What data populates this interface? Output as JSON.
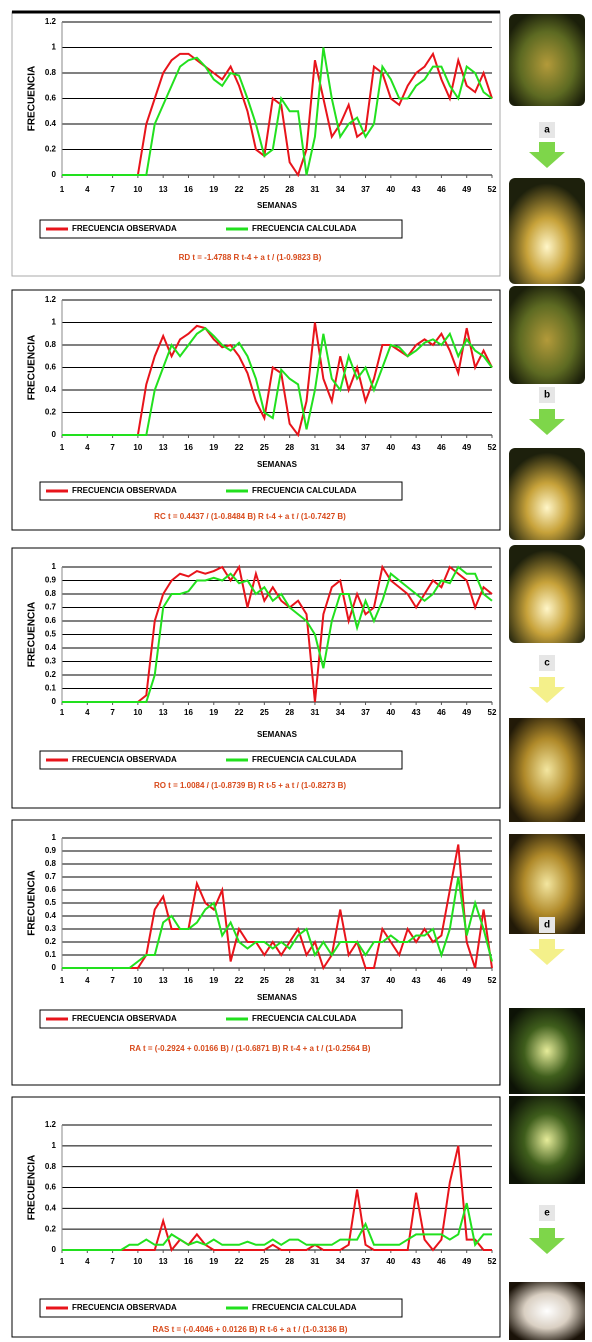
{
  "chart_data": [
    {
      "type": "line",
      "xlabel": "SEMANAS",
      "ylabel": "FRECUENCIA",
      "annotation": "RD t = -1.4788 R t-4 + a t / (1-0.9823 B)",
      "x": [
        1,
        2,
        3,
        4,
        5,
        6,
        7,
        8,
        9,
        10,
        11,
        12,
        13,
        14,
        15,
        16,
        17,
        18,
        19,
        20,
        21,
        22,
        23,
        24,
        25,
        26,
        27,
        28,
        29,
        30,
        31,
        32,
        33,
        34,
        35,
        36,
        37,
        38,
        39,
        40,
        41,
        42,
        43,
        44,
        45,
        46,
        47,
        48,
        49,
        50,
        51,
        52
      ],
      "xlim": [
        1,
        52
      ],
      "xticks": [
        1,
        4,
        7,
        10,
        13,
        16,
        19,
        22,
        25,
        28,
        31,
        34,
        37,
        40,
        43,
        46,
        49,
        52
      ],
      "ylim": [
        0,
        1.2
      ],
      "yticks": [
        0,
        0.2,
        0.4,
        0.6,
        0.8,
        1,
        1.2
      ],
      "grid": true,
      "series": [
        {
          "name": "FRECUENCIA OBSERVADA",
          "color": "#e8141b",
          "values": [
            0,
            0,
            0,
            0,
            0,
            0,
            0,
            0,
            0,
            0,
            0.4,
            0.6,
            0.8,
            0.9,
            0.95,
            0.95,
            0.9,
            0.85,
            0.8,
            0.75,
            0.85,
            0.7,
            0.5,
            0.2,
            0.15,
            0.6,
            0.55,
            0.1,
            0,
            0.2,
            0.9,
            0.6,
            0.3,
            0.4,
            0.55,
            0.3,
            0.35,
            0.85,
            0.8,
            0.6,
            0.55,
            0.7,
            0.8,
            0.85,
            0.95,
            0.75,
            0.6,
            0.9,
            0.7,
            0.65,
            0.8,
            0.6
          ]
        },
        {
          "name": "FRECUENCIA CALCULADA",
          "color": "#22e01e",
          "values": [
            0,
            0,
            0,
            0,
            0,
            0,
            0,
            0,
            0,
            0,
            0,
            0.4,
            0.55,
            0.7,
            0.85,
            0.9,
            0.92,
            0.85,
            0.75,
            0.7,
            0.8,
            0.78,
            0.6,
            0.4,
            0.15,
            0.2,
            0.6,
            0.5,
            0.5,
            0,
            0.3,
            1,
            0.6,
            0.3,
            0.4,
            0.45,
            0.3,
            0.4,
            0.85,
            0.75,
            0.6,
            0.6,
            0.7,
            0.75,
            0.85,
            0.85,
            0.7,
            0.6,
            0.85,
            0.8,
            0.65,
            0.6
          ]
        }
      ]
    },
    {
      "type": "line",
      "xlabel": "SEMANAS",
      "ylabel": "FRECUENCIA",
      "annotation": "RC t = 0.4437 / (1-0.8484 B) R t-4 + a t / (1-0.7427 B)",
      "x": [
        1,
        2,
        3,
        4,
        5,
        6,
        7,
        8,
        9,
        10,
        11,
        12,
        13,
        14,
        15,
        16,
        17,
        18,
        19,
        20,
        21,
        22,
        23,
        24,
        25,
        26,
        27,
        28,
        29,
        30,
        31,
        32,
        33,
        34,
        35,
        36,
        37,
        38,
        39,
        40,
        41,
        42,
        43,
        44,
        45,
        46,
        47,
        48,
        49,
        50,
        51,
        52
      ],
      "xlim": [
        1,
        52
      ],
      "xticks": [
        1,
        4,
        7,
        10,
        13,
        16,
        19,
        22,
        25,
        28,
        31,
        34,
        37,
        40,
        43,
        46,
        49,
        52
      ],
      "ylim": [
        0,
        1.2
      ],
      "yticks": [
        0,
        0.2,
        0.4,
        0.6,
        0.8,
        1,
        1.2
      ],
      "grid": true,
      "series": [
        {
          "name": "FRECUENCIA OBSERVADA",
          "color": "#e8141b",
          "values": [
            0,
            0,
            0,
            0,
            0,
            0,
            0,
            0,
            0,
            0,
            0.45,
            0.7,
            0.88,
            0.7,
            0.85,
            0.9,
            0.97,
            0.95,
            0.85,
            0.78,
            0.8,
            0.7,
            0.55,
            0.3,
            0.15,
            0.6,
            0.55,
            0.1,
            0,
            0.3,
            1,
            0.5,
            0.3,
            0.7,
            0.4,
            0.6,
            0.3,
            0.5,
            0.8,
            0.8,
            0.75,
            0.7,
            0.8,
            0.85,
            0.8,
            0.9,
            0.75,
            0.55,
            0.95,
            0.6,
            0.75,
            0.6
          ]
        },
        {
          "name": "FRECUENCIA CALCULADA",
          "color": "#22e01e",
          "values": [
            0,
            0,
            0,
            0,
            0,
            0,
            0,
            0,
            0,
            0,
            0,
            0.4,
            0.6,
            0.8,
            0.7,
            0.8,
            0.9,
            0.95,
            0.88,
            0.8,
            0.75,
            0.82,
            0.7,
            0.5,
            0.2,
            0.15,
            0.58,
            0.5,
            0.45,
            0.05,
            0.4,
            0.9,
            0.5,
            0.4,
            0.7,
            0.5,
            0.6,
            0.4,
            0.6,
            0.8,
            0.78,
            0.7,
            0.75,
            0.82,
            0.85,
            0.8,
            0.9,
            0.7,
            0.85,
            0.75,
            0.7,
            0.6
          ]
        }
      ]
    },
    {
      "type": "line",
      "xlabel": "SEMANAS",
      "ylabel": "FRECUENCIA",
      "annotation": "RO t = 1.0084 / (1-0.8739 B) R t-5 + a t / (1-0.8273 B)",
      "x": [
        1,
        2,
        3,
        4,
        5,
        6,
        7,
        8,
        9,
        10,
        11,
        12,
        13,
        14,
        15,
        16,
        17,
        18,
        19,
        20,
        21,
        22,
        23,
        24,
        25,
        26,
        27,
        28,
        29,
        30,
        31,
        32,
        33,
        34,
        35,
        36,
        37,
        38,
        39,
        40,
        41,
        42,
        43,
        44,
        45,
        46,
        47,
        48,
        49,
        50,
        51,
        52
      ],
      "xlim": [
        1,
        52
      ],
      "xticks": [
        1,
        4,
        7,
        10,
        13,
        16,
        19,
        22,
        25,
        28,
        31,
        34,
        37,
        40,
        43,
        46,
        49,
        52
      ],
      "ylim": [
        0,
        1
      ],
      "yticks": [
        0,
        0.1,
        0.2,
        0.3,
        0.4,
        0.5,
        0.6,
        0.7,
        0.8,
        0.9,
        1
      ],
      "grid": true,
      "series": [
        {
          "name": "FRECUENCIA OBSERVADA",
          "color": "#e8141b",
          "values": [
            0,
            0,
            0,
            0,
            0,
            0,
            0,
            0,
            0,
            0,
            0.05,
            0.6,
            0.8,
            0.9,
            0.95,
            0.93,
            0.97,
            0.95,
            0.97,
            1,
            0.9,
            1,
            0.7,
            0.95,
            0.75,
            0.85,
            0.75,
            0.7,
            0.75,
            0.65,
            0,
            0.65,
            0.85,
            0.9,
            0.6,
            0.8,
            0.65,
            0.7,
            1,
            0.9,
            0.85,
            0.8,
            0.7,
            0.8,
            0.9,
            0.85,
            1,
            0.95,
            0.9,
            0.7,
            0.85,
            0.8
          ]
        },
        {
          "name": "FRECUENCIA CALCULADA",
          "color": "#22e01e",
          "values": [
            0,
            0,
            0,
            0,
            0,
            0,
            0,
            0,
            0,
            0,
            0,
            0.2,
            0.7,
            0.8,
            0.8,
            0.82,
            0.9,
            0.9,
            0.92,
            0.9,
            0.95,
            0.88,
            0.9,
            0.8,
            0.85,
            0.75,
            0.8,
            0.7,
            0.65,
            0.6,
            0.5,
            0.25,
            0.6,
            0.8,
            0.8,
            0.55,
            0.75,
            0.6,
            0.75,
            0.95,
            0.9,
            0.85,
            0.8,
            0.75,
            0.8,
            0.9,
            0.88,
            1,
            0.95,
            0.95,
            0.8,
            0.75
          ]
        }
      ]
    },
    {
      "type": "line",
      "xlabel": "SEMANAS",
      "ylabel": "FRECUENCIA",
      "annotation": "RA t = (-0.2924 + 0.0166 B) / (1-0.6871 B) R t-4 + a t / (1-0.2564 B)",
      "x": [
        1,
        2,
        3,
        4,
        5,
        6,
        7,
        8,
        9,
        10,
        11,
        12,
        13,
        14,
        15,
        16,
        17,
        18,
        19,
        20,
        21,
        22,
        23,
        24,
        25,
        26,
        27,
        28,
        29,
        30,
        31,
        32,
        33,
        34,
        35,
        36,
        37,
        38,
        39,
        40,
        41,
        42,
        43,
        44,
        45,
        46,
        47,
        48,
        49,
        50,
        51,
        52
      ],
      "xlim": [
        1,
        52
      ],
      "xticks": [
        1,
        4,
        7,
        10,
        13,
        16,
        19,
        22,
        25,
        28,
        31,
        34,
        37,
        40,
        43,
        46,
        49,
        52
      ],
      "ylim": [
        0,
        1
      ],
      "yticks": [
        0,
        0.1,
        0.2,
        0.3,
        0.4,
        0.5,
        0.6,
        0.7,
        0.8,
        0.9,
        1
      ],
      "grid": true,
      "series": [
        {
          "name": "FRECUENCIA OBSERVADA",
          "color": "#e8141b",
          "values": [
            0,
            0,
            0,
            0,
            0,
            0,
            0,
            0,
            0,
            0,
            0.1,
            0.45,
            0.55,
            0.3,
            0.3,
            0.3,
            0.65,
            0.5,
            0.45,
            0.6,
            0.05,
            0.3,
            0.2,
            0.2,
            0.1,
            0.2,
            0.1,
            0.2,
            0.3,
            0.1,
            0.2,
            0,
            0.1,
            0.45,
            0.1,
            0.2,
            0,
            0,
            0.3,
            0.2,
            0.1,
            0.3,
            0.2,
            0.3,
            0.2,
            0.25,
            0.6,
            0.95,
            0.2,
            0,
            0.45,
            0
          ]
        },
        {
          "name": "FRECUENCIA CALCULADA",
          "color": "#22e01e",
          "values": [
            0,
            0,
            0,
            0,
            0,
            0,
            0,
            0,
            0,
            0.05,
            0.1,
            0.1,
            0.35,
            0.4,
            0.3,
            0.3,
            0.35,
            0.45,
            0.5,
            0.25,
            0.35,
            0.2,
            0.15,
            0.2,
            0.2,
            0.15,
            0.2,
            0.15,
            0.25,
            0.3,
            0.1,
            0.2,
            0.1,
            0.2,
            0.2,
            0.2,
            0.1,
            0.2,
            0.2,
            0.25,
            0.2,
            0.2,
            0.25,
            0.25,
            0.3,
            0.1,
            0.3,
            0.7,
            0.25,
            0.5,
            0.3,
            0.05
          ]
        }
      ]
    },
    {
      "type": "line",
      "ylabel": "FRECUENCIA",
      "annotation": "RAS t = (-0.4046 + 0.0126 B) R t-6 + a t / (1-0.3136 B)",
      "x": [
        1,
        2,
        3,
        4,
        5,
        6,
        7,
        8,
        9,
        10,
        11,
        12,
        13,
        14,
        15,
        16,
        17,
        18,
        19,
        20,
        21,
        22,
        23,
        24,
        25,
        26,
        27,
        28,
        29,
        30,
        31,
        32,
        33,
        34,
        35,
        36,
        37,
        38,
        39,
        40,
        41,
        42,
        43,
        44,
        45,
        46,
        47,
        48,
        49,
        50,
        51,
        52
      ],
      "xlim": [
        1,
        52
      ],
      "xticks": [
        1,
        4,
        7,
        10,
        13,
        16,
        19,
        22,
        25,
        28,
        31,
        34,
        37,
        40,
        43,
        46,
        49,
        52
      ],
      "ylim": [
        0,
        1.2
      ],
      "yticks": [
        0,
        0.2,
        0.4,
        0.6,
        0.8,
        1,
        1.2
      ],
      "grid": true,
      "series": [
        {
          "name": "FRECUENCIA OBSERVADA",
          "color": "#e8141b",
          "values": [
            0,
            0,
            0,
            0,
            0,
            0,
            0,
            0,
            0,
            0,
            0,
            0,
            0.28,
            0,
            0.1,
            0.05,
            0.15,
            0.05,
            0,
            0,
            0,
            0,
            0,
            0,
            0,
            0.05,
            0,
            0,
            0,
            0,
            0.05,
            0,
            0,
            0,
            0.05,
            0.58,
            0.05,
            0,
            0,
            0,
            0,
            0,
            0.55,
            0.1,
            0,
            0.1,
            0.65,
            1,
            0.1,
            0.1,
            0,
            0
          ]
        },
        {
          "name": "FRECUENCIA CALCULADA",
          "color": "#22e01e",
          "values": [
            0,
            0,
            0,
            0,
            0,
            0,
            0,
            0,
            0.05,
            0.05,
            0.1,
            0.05,
            0.05,
            0.15,
            0.1,
            0.05,
            0.08,
            0.05,
            0.1,
            0.05,
            0.05,
            0.05,
            0.08,
            0.05,
            0.05,
            0.1,
            0.05,
            0.1,
            0.1,
            0.05,
            0.05,
            0.05,
            0.05,
            0.1,
            0.1,
            0.1,
            0.25,
            0.05,
            0.05,
            0.05,
            0.05,
            0.1,
            0.15,
            0.15,
            0.15,
            0.15,
            0.1,
            0.15,
            0.45,
            0.05,
            0.15,
            0.15
          ]
        }
      ]
    }
  ],
  "stages": [
    "a",
    "b",
    "c",
    "d",
    "e"
  ]
}
